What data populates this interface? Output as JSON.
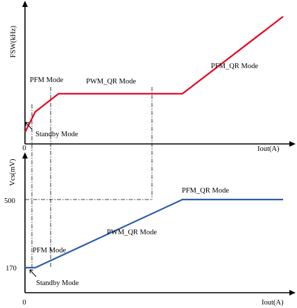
{
  "chart_data": [
    {
      "type": "line",
      "ylabel": "FSW(kHz)",
      "xlabel": "Iout(A)",
      "origin_label": "0",
      "series": [
        {
          "color": "#e8001c",
          "x": [
            0,
            0.04,
            0.13,
            0.61,
            1.0
          ],
          "y": [
            0.09,
            0.25,
            0.39,
            0.39,
            0.99
          ]
        }
      ],
      "annotations": [
        {
          "text": "PFM Mode"
        },
        {
          "text": "PWM_QR Mode"
        },
        {
          "text": "PFM_QR Mode"
        },
        {
          "text": "Standby Mode"
        }
      ]
    },
    {
      "type": "line",
      "ylabel": "Vcs(mV)",
      "xlabel": "Iout(A)",
      "origin_label": "0",
      "yticks": [
        "500",
        "170"
      ],
      "series": [
        {
          "color": "#2a5ea8",
          "x": [
            0,
            0.04,
            0.61,
            1.0
          ],
          "y": [
            170,
            170,
            500,
            500
          ]
        }
      ],
      "annotations": [
        {
          "text": "PFM_QR Mode"
        },
        {
          "text": "PWM_QR Mode"
        },
        {
          "text": "PFM Mode"
        },
        {
          "text": "Standby Mode"
        }
      ]
    }
  ]
}
